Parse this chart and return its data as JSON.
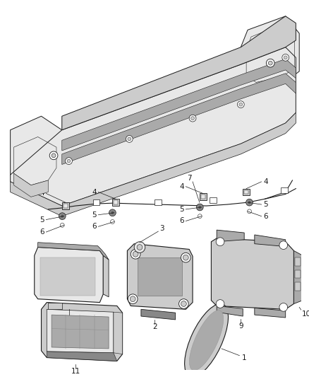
{
  "background_color": "#ffffff",
  "fig_width": 4.38,
  "fig_height": 5.33,
  "dpi": 100,
  "line_color": "#1a1a1a",
  "label_color": "#1a1a1a",
  "label_fontsize": 7.5,
  "gray_light": "#e8e8e8",
  "gray_mid": "#cccccc",
  "gray_dark": "#aaaaaa",
  "gray_darker": "#888888"
}
